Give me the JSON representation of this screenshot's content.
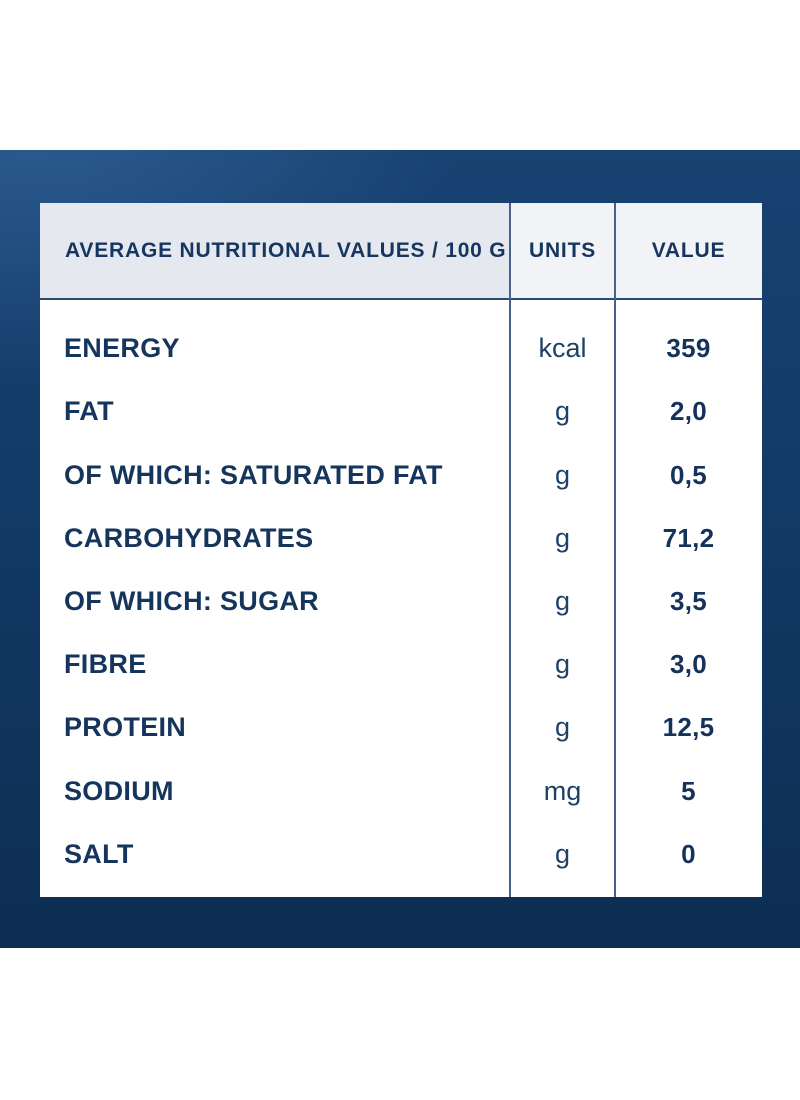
{
  "table": {
    "header": {
      "col1": "AVERAGE NUTRITIONAL VALUES / 100 G",
      "col2": "UNITS",
      "col3": "VALUE"
    },
    "rows": [
      {
        "label": "ENERGY",
        "unit": "kcal",
        "value": "359"
      },
      {
        "label": "FAT",
        "unit": "g",
        "value": "2,0"
      },
      {
        "label": "OF WHICH: SATURATED FAT",
        "unit": "g",
        "value": "0,5"
      },
      {
        "label": "CARBOHYDRATES",
        "unit": "g",
        "value": "71,2"
      },
      {
        "label": "OF WHICH: SUGAR",
        "unit": "g",
        "value": "3,5"
      },
      {
        "label": "FIBRE",
        "unit": "g",
        "value": "3,0"
      },
      {
        "label": "PROTEIN",
        "unit": "g",
        "value": "12,5"
      },
      {
        "label": "SODIUM",
        "unit": "mg",
        "value": "5"
      },
      {
        "label": "SALT",
        "unit": "g",
        "value": "0"
      }
    ]
  },
  "colors": {
    "navy_text": "#16355d",
    "unit_text": "#1f4168",
    "header_cell_main_bg": "#e5e9ef",
    "header_cell_light_bg": "#f1f3f7",
    "divider_line": "#44628c",
    "header_underline": "#2a4a74",
    "background_blue_top": "#174271",
    "background_blue_bottom": "#0d2e52",
    "card_bg": "#ffffff"
  }
}
